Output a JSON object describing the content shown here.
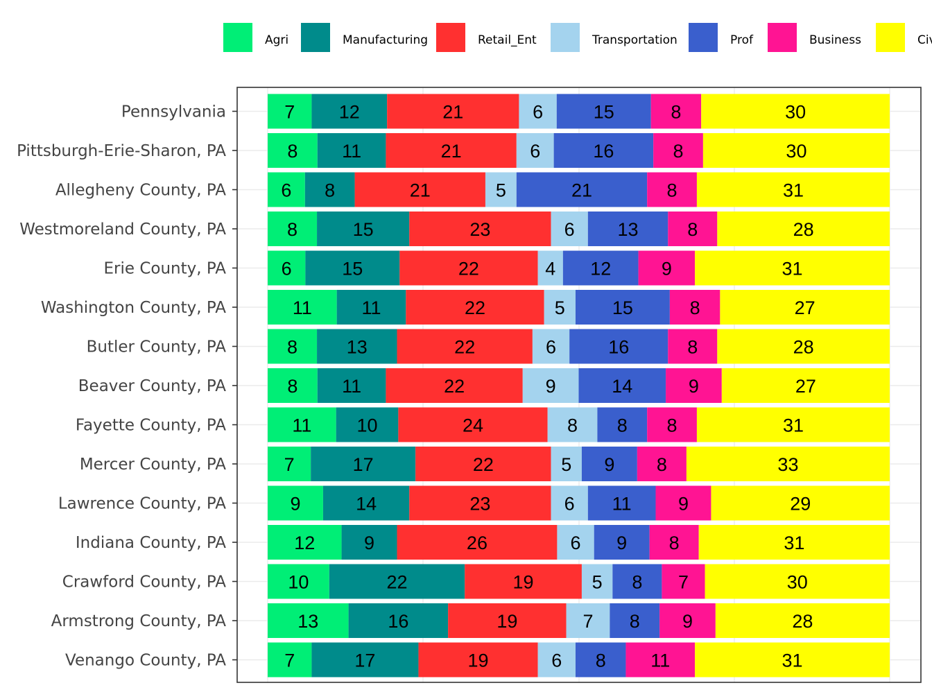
{
  "chart_data": {
    "type": "bar",
    "orientation": "horizontal",
    "stacked": true,
    "title": "",
    "xlabel": "",
    "ylabel": "",
    "grid": true,
    "legend_position": "top",
    "categories": [
      "Pennsylvania",
      "Pittsburgh-Erie-Sharon, PA",
      "Allegheny County, PA",
      "Westmoreland County, PA",
      "Erie County, PA",
      "Washington County, PA",
      "Butler County, PA",
      "Beaver County, PA",
      "Fayette County, PA",
      "Mercer County, PA",
      "Lawrence County, PA",
      "Indiana County, PA",
      "Crawford County, PA",
      "Armstrong County, PA",
      "Venango County, PA"
    ],
    "series": [
      {
        "name": "Agri",
        "color": "#00EE76",
        "values": [
          7,
          8,
          6,
          8,
          6,
          11,
          8,
          8,
          11,
          7,
          9,
          12,
          10,
          13,
          7
        ]
      },
      {
        "name": "Manufacturing",
        "color": "#008B8B",
        "values": [
          12,
          11,
          8,
          15,
          15,
          11,
          13,
          11,
          10,
          17,
          14,
          9,
          22,
          16,
          17
        ]
      },
      {
        "name": "Retail_Ent",
        "color": "#FF3030",
        "values": [
          21,
          21,
          21,
          23,
          22,
          22,
          22,
          22,
          24,
          22,
          23,
          26,
          19,
          19,
          19
        ]
      },
      {
        "name": "Transportation",
        "color": "#A4D3EE",
        "values": [
          6,
          6,
          5,
          6,
          4,
          5,
          6,
          9,
          8,
          5,
          6,
          6,
          5,
          7,
          6
        ]
      },
      {
        "name": "Prof",
        "color": "#3A5FCD",
        "values": [
          15,
          16,
          21,
          13,
          12,
          15,
          16,
          14,
          8,
          9,
          11,
          9,
          8,
          8,
          8
        ]
      },
      {
        "name": "Business",
        "color": "#FF1493",
        "values": [
          8,
          8,
          8,
          8,
          9,
          8,
          8,
          9,
          8,
          8,
          9,
          8,
          7,
          9,
          11
        ]
      },
      {
        "name": "Civ",
        "color": "#FFFF00",
        "values": [
          30,
          30,
          31,
          28,
          31,
          27,
          28,
          27,
          31,
          33,
          29,
          31,
          30,
          28,
          31
        ]
      }
    ]
  }
}
